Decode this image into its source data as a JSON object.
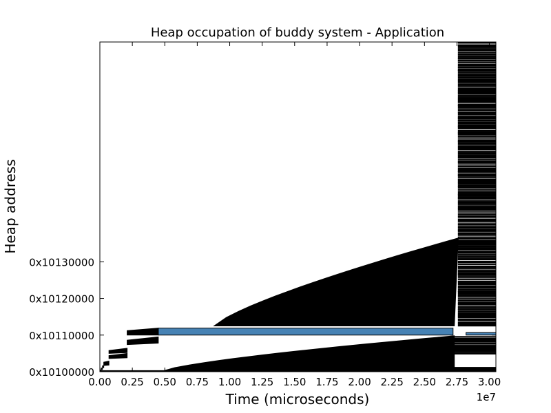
{
  "chart_data": {
    "type": "heap-occupation",
    "title": "Heap occupation of buddy system - Application",
    "xlabel": "Time (microseconds)",
    "ylabel": "Heap address",
    "x_offset_label": "1e7",
    "xlim": [
      0,
      3.05
    ],
    "ylim": [
      65536.0,
      65545.0
    ],
    "x_ticks": [
      {
        "value": 0.0,
        "label": "0.00"
      },
      {
        "value": 0.25,
        "label": "0.25"
      },
      {
        "value": 0.5,
        "label": "0.50"
      },
      {
        "value": 0.75,
        "label": "0.75"
      },
      {
        "value": 1.0,
        "label": "1.00"
      },
      {
        "value": 1.25,
        "label": "1.25"
      },
      {
        "value": 1.5,
        "label": "1.50"
      },
      {
        "value": 1.75,
        "label": "1.75"
      },
      {
        "value": 2.0,
        "label": "2.00"
      },
      {
        "value": 2.25,
        "label": "2.25"
      },
      {
        "value": 2.5,
        "label": "2.50"
      },
      {
        "value": 2.75,
        "label": "2.75"
      },
      {
        "value": 3.0,
        "label": "3.00"
      }
    ],
    "y_ticks": [
      {
        "value": 65536.0,
        "label": "0x10100000"
      },
      {
        "value": 65537.0,
        "label": "0x10110000"
      },
      {
        "value": 65538.0,
        "label": "0x10120000"
      },
      {
        "value": 65539.0,
        "label": "0x10130000"
      }
    ],
    "colors": {
      "block": "#000000",
      "highlight": "#4682b4"
    }
  }
}
